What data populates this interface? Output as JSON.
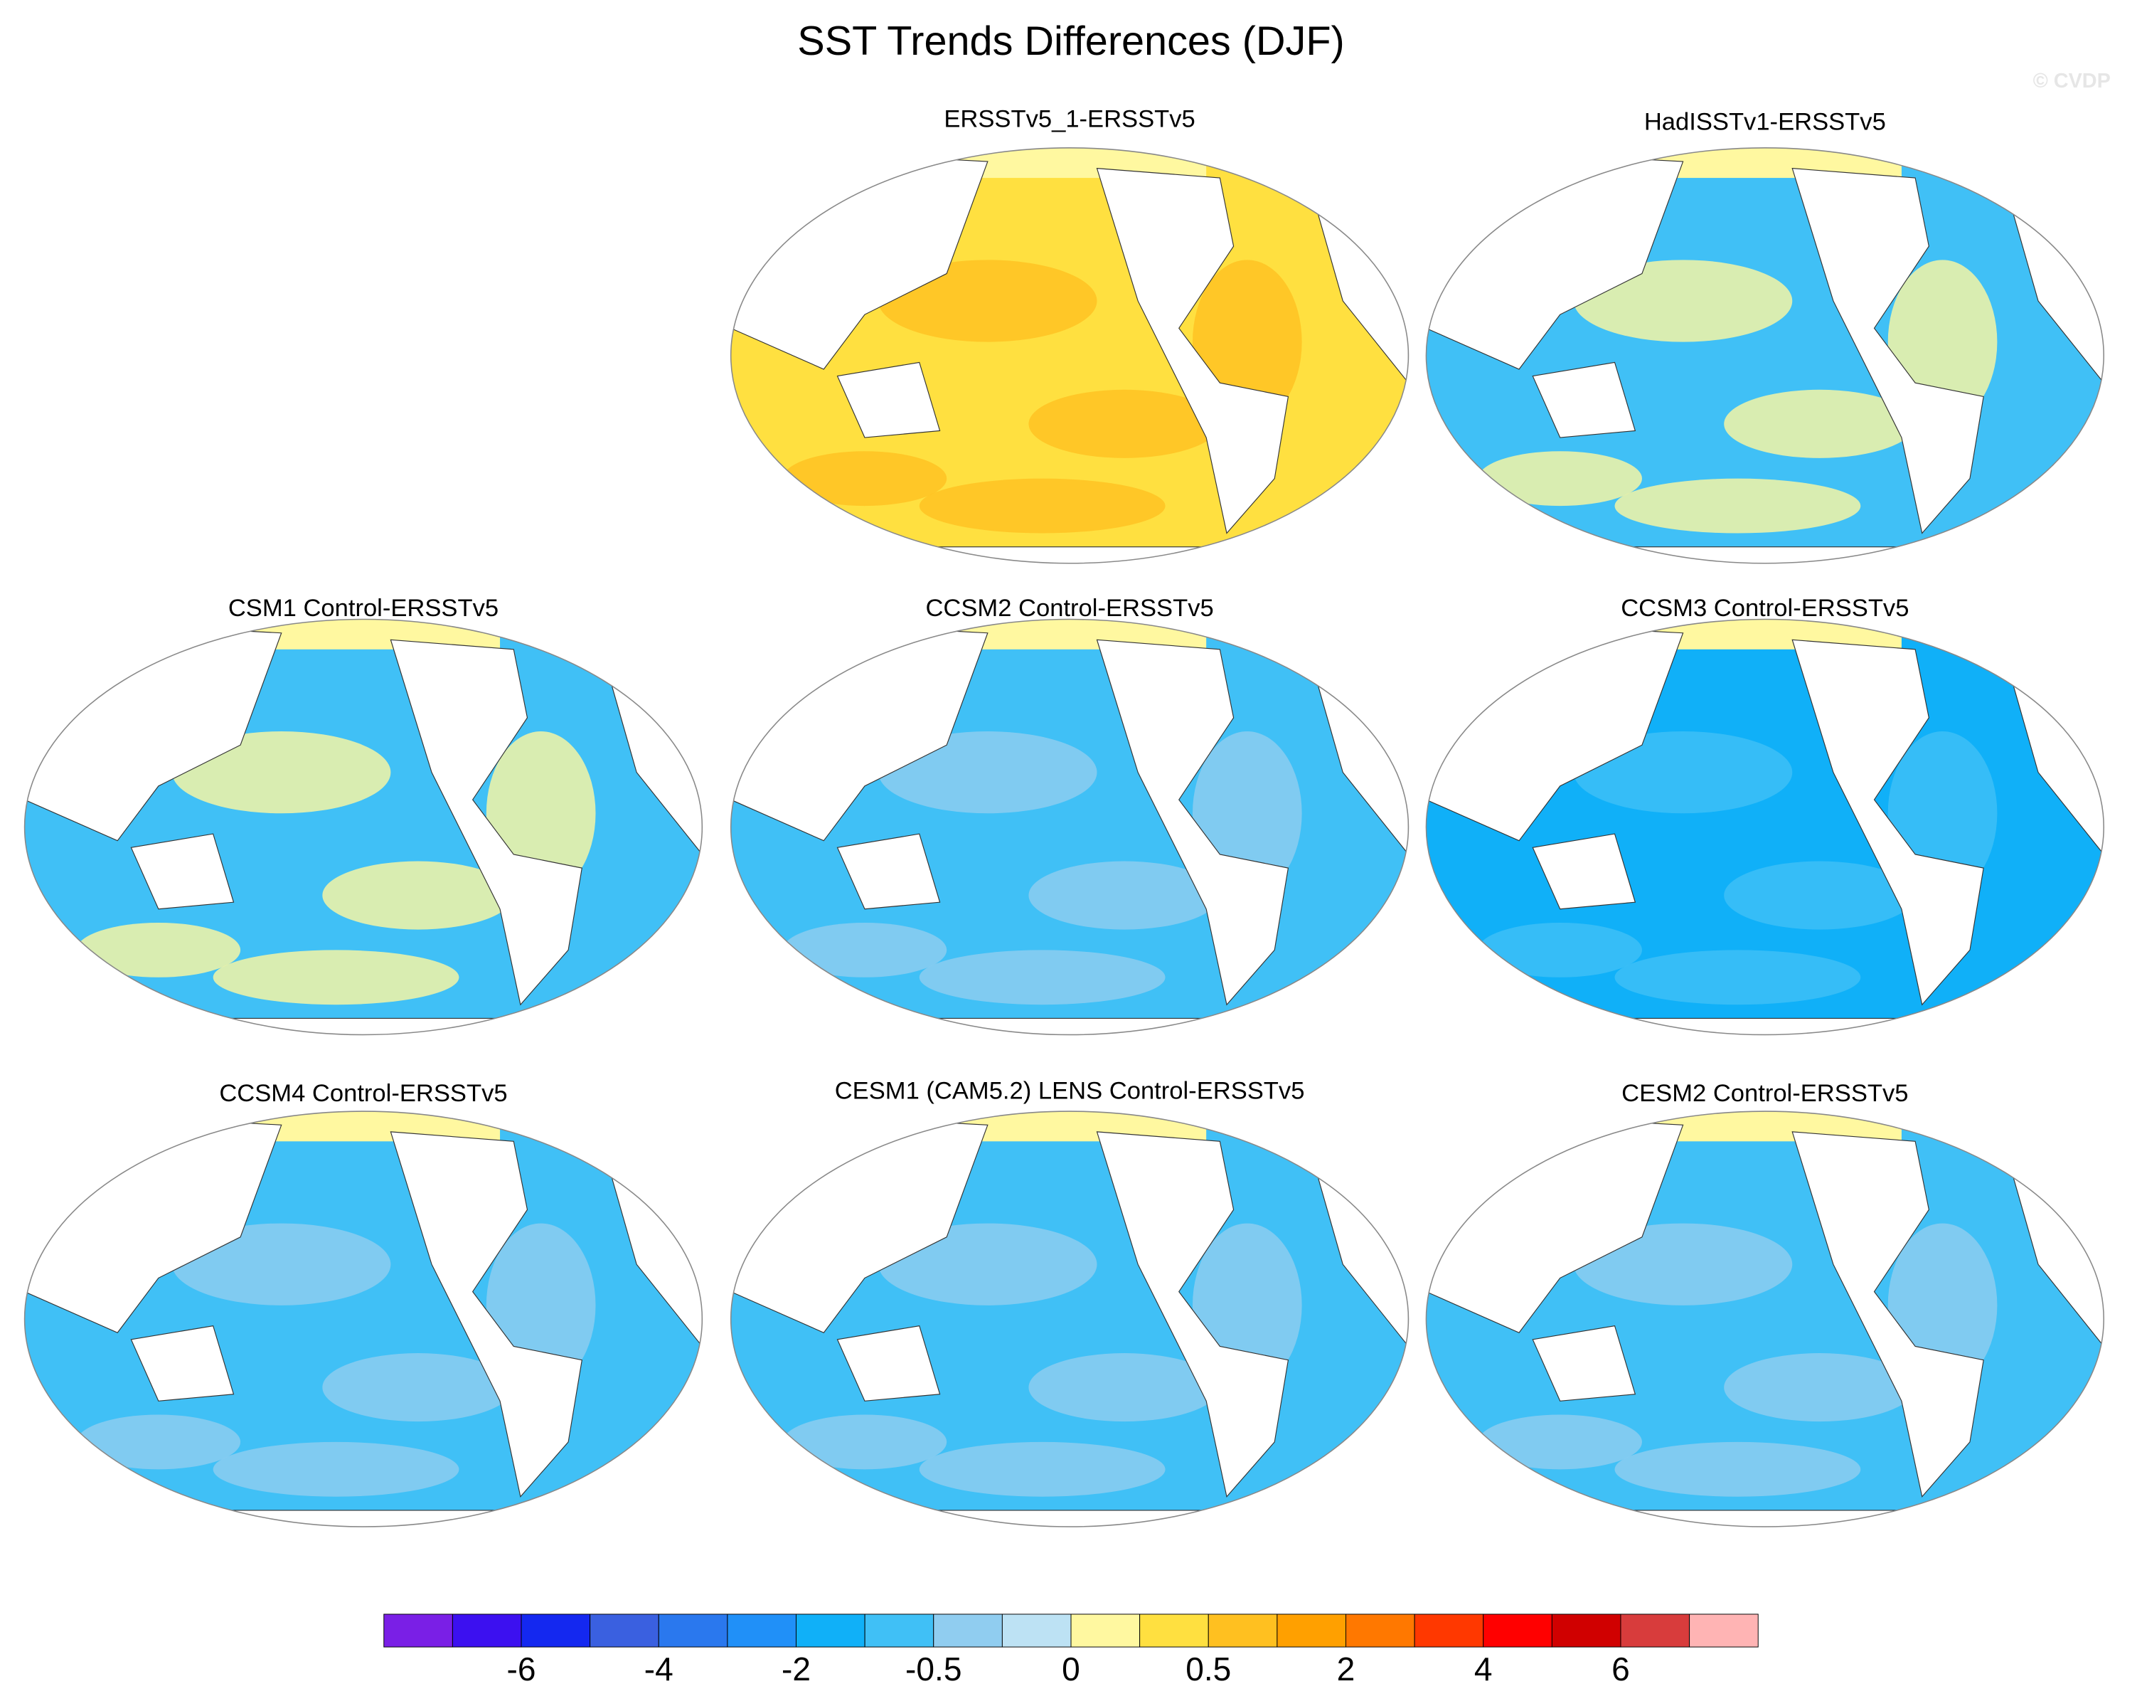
{
  "title": "SST Trends Differences (DJF)",
  "watermark": "© CVDP",
  "panels": [
    {
      "title": "ERSSTv5_1-ERSSTv5"
    },
    {
      "title": "HadISSTv1-ERSSTv5"
    },
    {
      "title": "CSM1 Control-ERSSTv5"
    },
    {
      "title": "CCSM2 Control-ERSSTv5"
    },
    {
      "title": "CCSM3 Control-ERSSTv5"
    },
    {
      "title": "CCSM4 Control-ERSSTv5"
    },
    {
      "title": "CESM1 (CAM5.2) LENS Control-ERSSTv5"
    },
    {
      "title": "CESM2 Control-ERSSTv5"
    }
  ],
  "colorbar": {
    "colors": [
      "#7a1fe6",
      "#3c10f0",
      "#1428f0",
      "#3a60e0",
      "#2a78ee",
      "#2090f8",
      "#10b0f8",
      "#40c0f6",
      "#90cdf0",
      "#bde2f4",
      "#fff8a0",
      "#ffe040",
      "#ffc020",
      "#ffa000",
      "#ff7800",
      "#ff3800",
      "#ff0000",
      "#d00000",
      "#d83c3c",
      "#ffb4b4"
    ],
    "labels": [
      -6,
      -4,
      -2,
      -0.5,
      0,
      0.5,
      2,
      4,
      6
    ]
  }
}
